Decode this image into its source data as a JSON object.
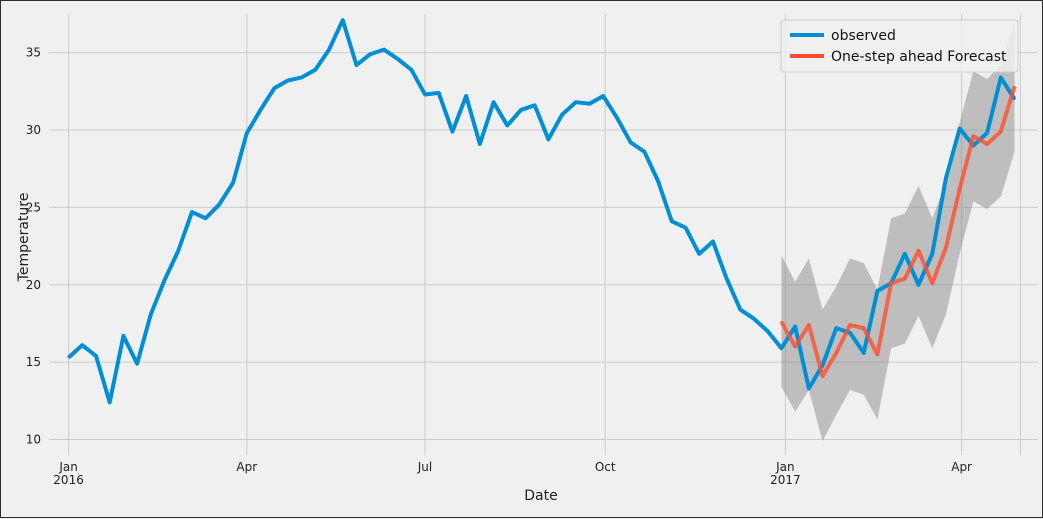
{
  "chart_data": {
    "type": "line",
    "xlabel": "Date",
    "ylabel": "Temperature",
    "ylim": [
      9,
      37.5
    ],
    "xlim": [
      "2015-12-22",
      "2017-05-10"
    ],
    "yticks": [
      10,
      15,
      20,
      25,
      30,
      35
    ],
    "xticks": [
      {
        "date": "2016-01-01",
        "label": "Jan",
        "sublabel": "2016"
      },
      {
        "date": "2016-04-01",
        "label": "Apr",
        "sublabel": ""
      },
      {
        "date": "2016-07-01",
        "label": "Jul",
        "sublabel": ""
      },
      {
        "date": "2016-10-01",
        "label": "Oct",
        "sublabel": ""
      },
      {
        "date": "2017-01-01",
        "label": "Jan",
        "sublabel": "2017"
      },
      {
        "date": "2017-04-01",
        "label": "Apr",
        "sublabel": ""
      }
    ],
    "minor_xticks": [
      "2017-05-01"
    ],
    "grid": true,
    "legend_position": "top-right",
    "series": [
      {
        "name": "observed",
        "color": "#008fd5",
        "x": [
          "2016-01-01",
          "2016-01-08",
          "2016-01-15",
          "2016-01-22",
          "2016-01-29",
          "2016-02-05",
          "2016-02-12",
          "2016-02-19",
          "2016-02-26",
          "2016-03-04",
          "2016-03-11",
          "2016-03-18",
          "2016-03-25",
          "2016-04-01",
          "2016-04-08",
          "2016-04-15",
          "2016-04-22",
          "2016-04-29",
          "2016-05-06",
          "2016-05-13",
          "2016-05-20",
          "2016-05-27",
          "2016-06-03",
          "2016-06-10",
          "2016-06-17",
          "2016-06-24",
          "2016-07-01",
          "2016-07-08",
          "2016-07-15",
          "2016-07-22",
          "2016-07-29",
          "2016-08-05",
          "2016-08-12",
          "2016-08-19",
          "2016-08-26",
          "2016-09-02",
          "2016-09-09",
          "2016-09-16",
          "2016-09-23",
          "2016-09-30",
          "2016-10-07",
          "2016-10-14",
          "2016-10-21",
          "2016-10-28",
          "2016-11-04",
          "2016-11-11",
          "2016-11-18",
          "2016-11-25",
          "2016-12-02",
          "2016-12-09",
          "2016-12-16",
          "2016-12-23",
          "2016-12-30",
          "2017-01-06",
          "2017-01-13",
          "2017-01-20",
          "2017-01-27",
          "2017-02-03",
          "2017-02-10",
          "2017-02-17",
          "2017-02-24",
          "2017-03-03",
          "2017-03-10",
          "2017-03-17",
          "2017-03-24",
          "2017-03-31",
          "2017-04-07",
          "2017-04-14",
          "2017-04-21",
          "2017-04-28"
        ],
        "y": [
          15.3,
          16.1,
          15.4,
          12.4,
          16.7,
          14.9,
          18.1,
          20.3,
          22.2,
          24.7,
          24.3,
          25.2,
          26.6,
          29.8,
          31.3,
          32.7,
          33.2,
          33.4,
          33.9,
          35.2,
          37.1,
          34.2,
          34.9,
          35.2,
          34.6,
          33.9,
          32.3,
          32.4,
          29.9,
          32.2,
          29.1,
          31.8,
          30.3,
          31.3,
          31.6,
          29.4,
          31.0,
          31.8,
          31.7,
          32.2,
          30.8,
          29.2,
          28.6,
          26.7,
          24.1,
          23.7,
          22.0,
          22.8,
          20.4,
          18.4,
          17.8,
          17.0,
          15.9,
          17.3,
          13.3,
          14.8,
          17.2,
          16.9,
          15.6,
          19.6,
          20.1,
          22.0,
          20.0,
          22.0,
          26.9,
          30.1,
          29.0,
          29.8,
          33.4,
          32.0
        ]
      },
      {
        "name": "One-step ahead Forecast",
        "color": "#fc4f30",
        "x": [
          "2016-12-30",
          "2017-01-06",
          "2017-01-13",
          "2017-01-20",
          "2017-01-27",
          "2017-02-03",
          "2017-02-10",
          "2017-02-17",
          "2017-02-24",
          "2017-03-03",
          "2017-03-10",
          "2017-03-17",
          "2017-03-24",
          "2017-03-31",
          "2017-04-07",
          "2017-04-14",
          "2017-04-21",
          "2017-04-28"
        ],
        "y": [
          17.6,
          16.0,
          17.4,
          14.1,
          15.6,
          17.4,
          17.2,
          15.5,
          20.1,
          20.4,
          22.2,
          20.1,
          22.4,
          26.2,
          29.6,
          29.1,
          29.9,
          32.8
        ],
        "lower": [
          13.4,
          11.8,
          13.2,
          9.9,
          11.6,
          13.2,
          12.9,
          11.3,
          15.9,
          16.2,
          18.0,
          15.9,
          18.1,
          22.0,
          25.4,
          24.9,
          25.7,
          28.6
        ],
        "upper": [
          21.9,
          20.2,
          21.7,
          18.4,
          19.9,
          21.7,
          21.4,
          19.7,
          24.3,
          24.6,
          26.4,
          24.3,
          26.6,
          30.5,
          33.8,
          33.3,
          34.2,
          37.0
        ]
      }
    ]
  }
}
